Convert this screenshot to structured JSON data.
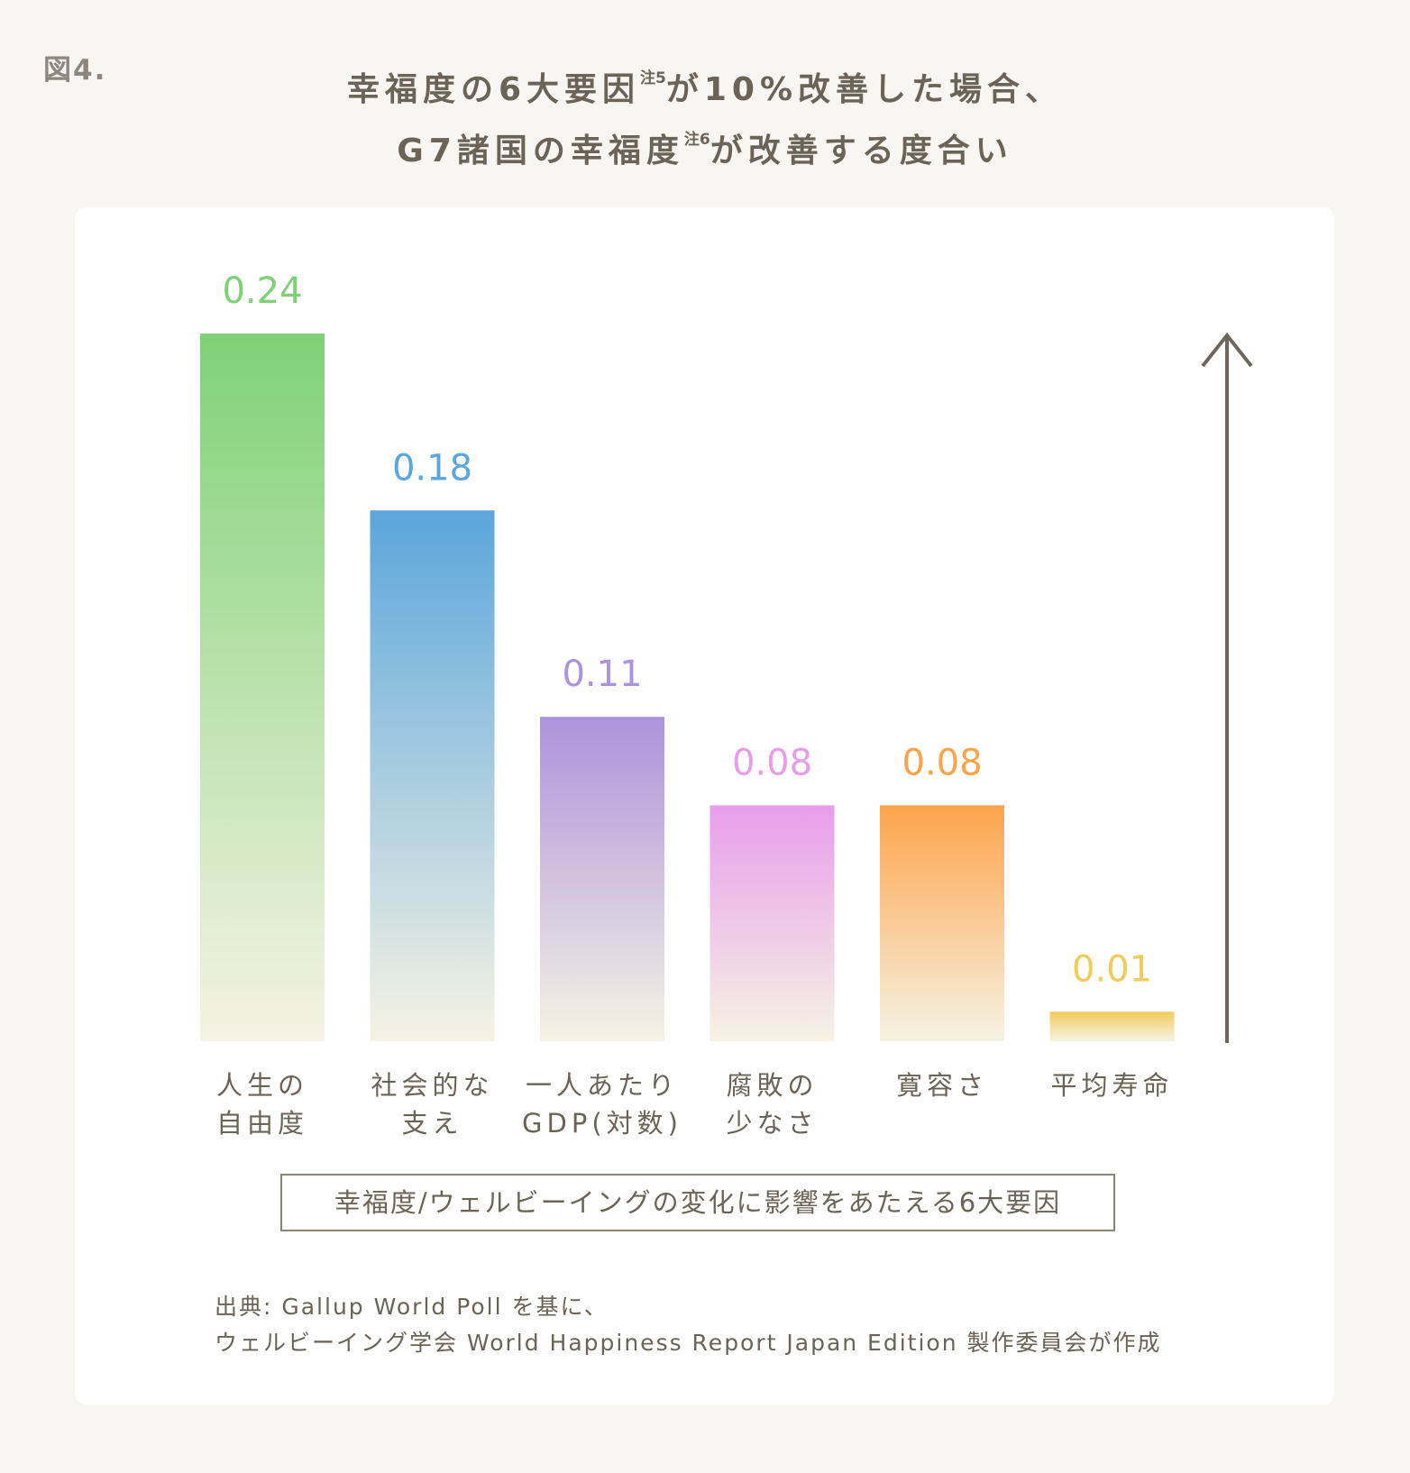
{
  "figure_label": "図4.",
  "title": {
    "line1_main": "幸福度の6大要因",
    "line1_note": "注5",
    "line1_rest": "が10%改善した場合、",
    "line2_main": "G7諸国の幸福度",
    "line2_note": "注6",
    "line2_rest": "が改善する度合い"
  },
  "chart_data": {
    "type": "bar",
    "categories": [
      [
        "人生の",
        "自由度"
      ],
      [
        "社会的な",
        "支え"
      ],
      [
        "一人あたり",
        "GDP(対数)"
      ],
      [
        "腐敗の",
        "少なさ"
      ],
      [
        "寛容さ"
      ],
      [
        "平均寿命"
      ]
    ],
    "values": [
      0.24,
      0.18,
      0.11,
      0.08,
      0.08,
      0.01
    ],
    "value_labels": [
      "0.24",
      "0.18",
      "0.11",
      "0.08",
      "0.08",
      "0.01"
    ],
    "colors": [
      "#7fd177",
      "#5ba6dc",
      "#ac93dc",
      "#e89deb",
      "#fda44b",
      "#f2cb5d"
    ],
    "fade_color": "#f6f3e4",
    "xlabel": "幸福度/ウェルビーイングの変化に影響をあたえる6大要因",
    "ylabel": "",
    "ylim": [
      0,
      0.24
    ],
    "grid": false,
    "legend": "none"
  },
  "source": {
    "line1": "出典: Gallup World Poll を基に、",
    "line2": "ウェルビーイング学会 World Happiness Report Japan Edition 製作委員会が作成"
  }
}
